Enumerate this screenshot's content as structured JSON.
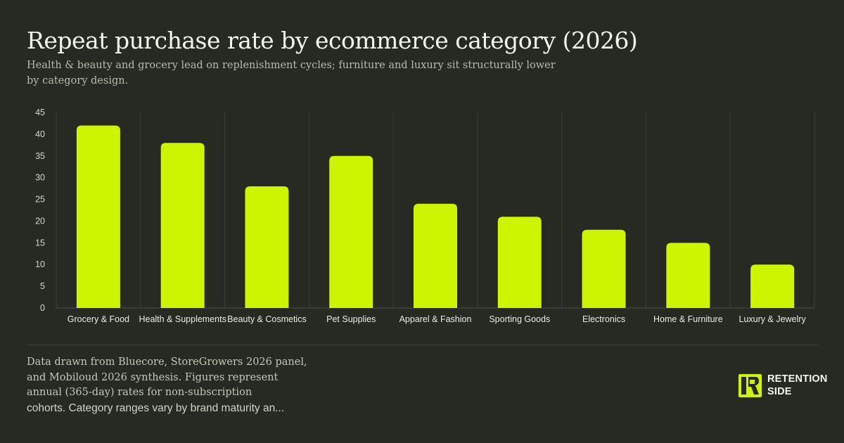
{
  "header": {
    "title": "Repeat purchase rate by ecommerce category (2026)",
    "subtitle": "Health & beauty and grocery lead on replenishment cycles; furniture and luxury sit structurally lower by category design."
  },
  "chart_data": {
    "type": "bar",
    "categories": [
      "Grocery & Food",
      "Health & Supplements",
      "Beauty & Cosmetics",
      "Pet Supplies",
      "Apparel & Fashion",
      "Sporting Goods",
      "Electronics",
      "Home & Furniture",
      "Luxury & Jewelry"
    ],
    "values": [
      42,
      38,
      28,
      35,
      24,
      21,
      18,
      15,
      10
    ],
    "ylim": [
      0,
      45
    ],
    "yticks": [
      0,
      5,
      10,
      15,
      20,
      25,
      30,
      35,
      40,
      45
    ],
    "xlabel": "",
    "ylabel": "",
    "grid": "vertical separators",
    "bar_color": "#cdf400"
  },
  "footnote": {
    "lines": [
      "Data drawn from Bluecore, StoreGrowers 2026 panel,",
      "and Mobiloud 2026 synthesis. Figures represent",
      "annual (365-day) rates for non-subscription",
      "cohorts. Category ranges vary by brand maturity an..."
    ]
  },
  "brand": {
    "line1": "RETENTION",
    "line2": "SIDE",
    "accent": "#cdf400"
  }
}
